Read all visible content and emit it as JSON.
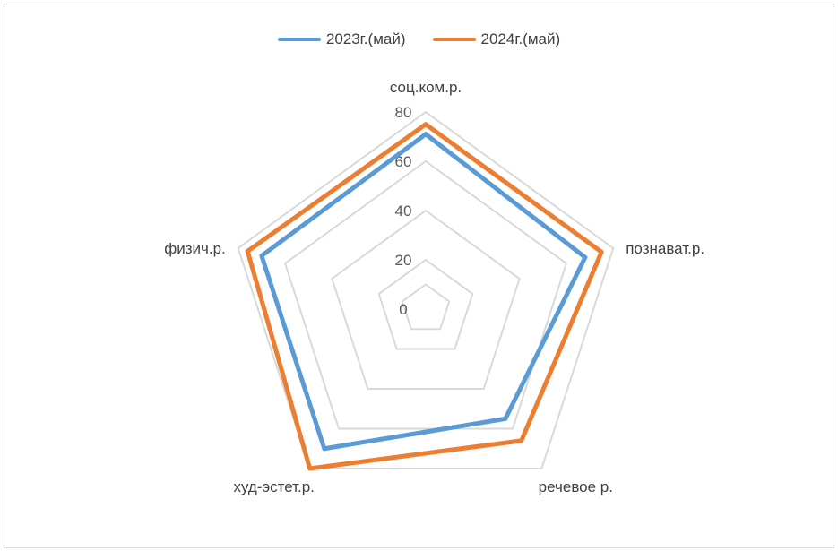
{
  "chart_data": {
    "type": "radar",
    "categories": [
      "соц.ком.р.",
      "познават.р.",
      "речевое р.",
      "худ-эстет.р.",
      "физич.р."
    ],
    "series": [
      {
        "name": "2023г.(май)",
        "color": "#5b9bd5",
        "values": [
          71,
          68,
          55,
          70,
          70
        ]
      },
      {
        "name": "2024г.(май)",
        "color": "#ed7d31",
        "values": [
          75,
          75,
          66,
          80,
          76
        ]
      }
    ],
    "rlim": [
      0,
      80
    ],
    "ticks": [
      "0",
      "20",
      "40",
      "60",
      "80"
    ],
    "grid": true,
    "legend_position": "top"
  }
}
